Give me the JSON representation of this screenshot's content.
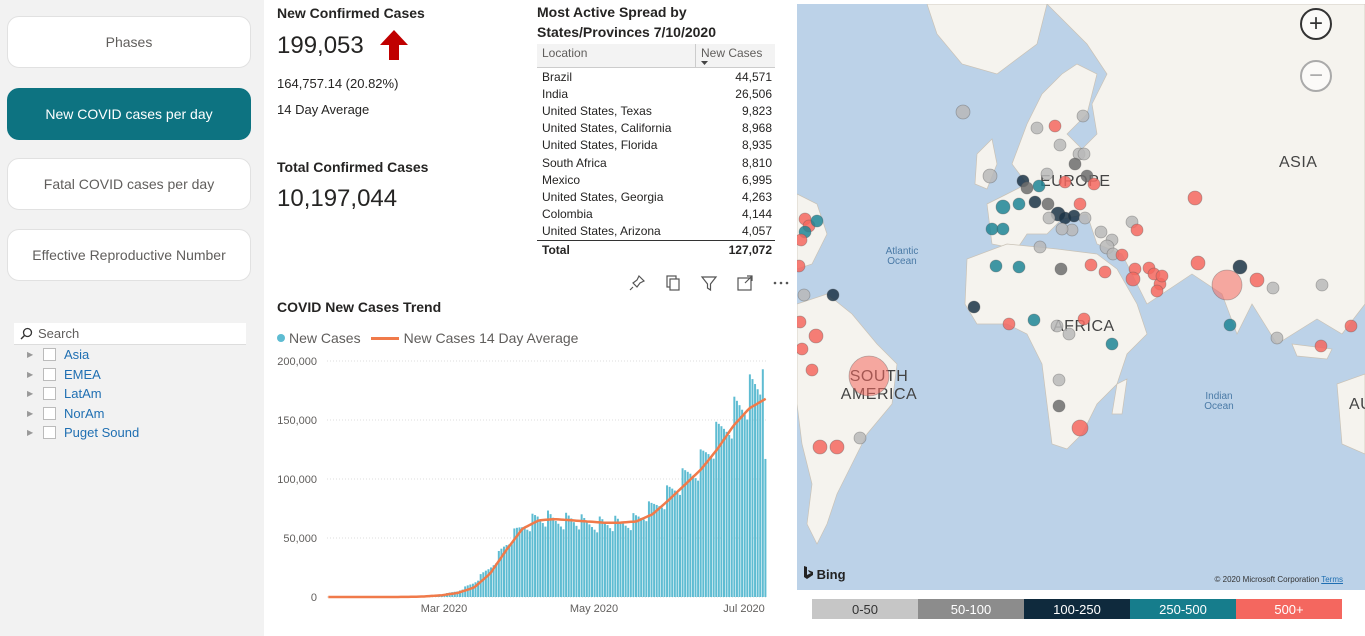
{
  "nav": {
    "buttons": [
      "Phases",
      "New COVID cases per day",
      "Fatal COVID cases per day",
      "Effective Reproductive Number"
    ],
    "active_index": 1
  },
  "slicer": {
    "search_placeholder": "Search",
    "items": [
      "Asia",
      "EMEA",
      "LatAm",
      "NorAm",
      "Puget Sound"
    ]
  },
  "kpi": {
    "new_title": "New Confirmed Cases",
    "new_value": "199,053",
    "new_trend_icon": "arrow-up-icon",
    "new_change": "164,757.14 (20.82%)",
    "new_change_label": "14 Day Average",
    "total_title": "Total Confirmed Cases",
    "total_value": "10,197,044"
  },
  "table": {
    "title": "Most Active Spread by States/Provinces 7/10/2020",
    "col_location": "Location",
    "col_cases": "New Cases",
    "rows": [
      {
        "loc": "Brazil",
        "cases": "44,571"
      },
      {
        "loc": "India",
        "cases": "26,506"
      },
      {
        "loc": "United States, Texas",
        "cases": "9,823"
      },
      {
        "loc": "United States, California",
        "cases": "8,968"
      },
      {
        "loc": "United States, Florida",
        "cases": "8,935"
      },
      {
        "loc": "South Africa",
        "cases": "8,810"
      },
      {
        "loc": "Mexico",
        "cases": "6,995"
      },
      {
        "loc": "United States, Georgia",
        "cases": "4,263"
      },
      {
        "loc": "Colombia",
        "cases": "4,144"
      },
      {
        "loc": "United States, Arizona",
        "cases": "4,057"
      }
    ],
    "total_label": "Total",
    "total_value": "127,072"
  },
  "visual_icons": [
    "pin-icon",
    "copy-icon",
    "filter-icon",
    "focus-mode-icon",
    "more-options-icon"
  ],
  "trend": {
    "title": "COVID New Cases Trend",
    "legend_new": "New Cases",
    "legend_avg": "New Cases 14 Day Average"
  },
  "chart_data": {
    "type": "bar",
    "title": "COVID New Cases Trend",
    "ylim": [
      0,
      200000
    ],
    "yticks": [
      "200,000",
      "150,000",
      "100,000",
      "50,000",
      "0"
    ],
    "xticks": [
      "Mar 2020",
      "May 2020",
      "Jul 2020"
    ],
    "series": [
      {
        "name": "New Cases",
        "type": "bar",
        "color": "#5ebcd2",
        "x_range": [
          "2020-01-22",
          "2020-07-10"
        ],
        "values_by_week": [
          0,
          0,
          0,
          0,
          0,
          200,
          1000,
          2000,
          5000,
          12000,
          25000,
          45000,
          60000,
          68000,
          65000,
          66000,
          62000,
          63000,
          62000,
          66000,
          75000,
          88000,
          100000,
          115000,
          135000,
          155000,
          170000,
          185000
        ]
      },
      {
        "name": "New Cases 14 Day Average",
        "type": "line",
        "color": "#f07a4a",
        "values_by_week": [
          0,
          0,
          0,
          0,
          0,
          100,
          500,
          1500,
          3500,
          8000,
          20000,
          40000,
          58000,
          65000,
          66000,
          65000,
          64000,
          63000,
          63000,
          64000,
          70000,
          82000,
          95000,
          108000,
          125000,
          145000,
          160000,
          168000
        ]
      }
    ]
  },
  "map": {
    "labels": [
      "EUROPE",
      "ASIA",
      "AFRICA",
      "SOUTH AMERICA"
    ],
    "oceans": [
      "Atlantic Ocean",
      "Indian Ocean"
    ],
    "partial_label": "AU",
    "attribution": "Bing",
    "copyright": "© 2020 Microsoft Corporation",
    "terms": "Terms",
    "zoom_in": "+",
    "zoom_out": "−"
  },
  "map_legend": [
    {
      "label": "0-50",
      "color": "#c6c6c6",
      "text": "#333333"
    },
    {
      "label": "50-100",
      "color": "#8c8c8c",
      "text": "#ffffff"
    },
    {
      "label": "100-250",
      "color": "#0f2a3d",
      "text": "#ffffff"
    },
    {
      "label": "250-500",
      "color": "#167d8c",
      "text": "#ffffff"
    },
    {
      "label": "500+",
      "color": "#f4675f",
      "text": "#ffffff"
    }
  ]
}
